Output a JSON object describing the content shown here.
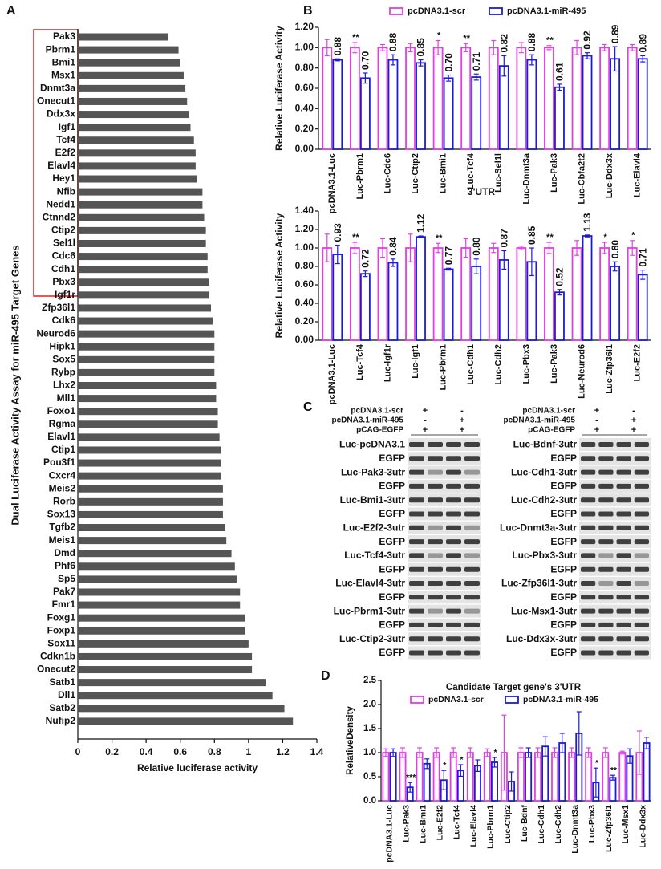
{
  "panels": [
    "A",
    "B",
    "C",
    "D"
  ],
  "chart_data": [
    {
      "type": "barh",
      "xlabel": "Relative luciferase activity",
      "ylabel": "Dual Luciferase Activity Assay for miR-495 Target Genes",
      "color": "#555555",
      "categories": [
        "Pak3",
        "Pbrm1",
        "Bmi1",
        "Msx1",
        "Dnmt3a",
        "Onecut1",
        "Ddx3x",
        "Igf1",
        "Tcf4",
        "E2f2",
        "Elavl4",
        "Hey1",
        "Nfib",
        "Nedd1",
        "Ctnnd2",
        "Ctip2",
        "Sel1l",
        "Cdc6",
        "Cdh1",
        "Pbx3",
        "Igf1r",
        "Zfp36l1",
        "Cdk6",
        "Neurod6",
        "Hipk1",
        "Sox5",
        "Rybp",
        "Lhx2",
        "Mll1",
        "Foxo1",
        "Rgma",
        "Elavl1",
        "Ctip1",
        "Pou3f1",
        "Cxcr4",
        "Meis2",
        "Rorb",
        "Sox13",
        "Tgfb2",
        "Meis1",
        "Dmd",
        "Phf6",
        "Sp5",
        "Pak7",
        "Fmr1",
        "Foxg1",
        "Foxp1",
        "Sox11",
        "Cdkn1b",
        "Onecut2",
        "Satb1",
        "Dll1",
        "Satb2",
        "Nufip2"
      ],
      "values": [
        0.53,
        0.59,
        0.6,
        0.62,
        0.63,
        0.64,
        0.65,
        0.66,
        0.68,
        0.69,
        0.69,
        0.7,
        0.73,
        0.73,
        0.74,
        0.75,
        0.75,
        0.76,
        0.76,
        0.77,
        0.77,
        0.78,
        0.79,
        0.8,
        0.8,
        0.8,
        0.8,
        0.81,
        0.81,
        0.82,
        0.82,
        0.83,
        0.84,
        0.84,
        0.84,
        0.85,
        0.85,
        0.85,
        0.86,
        0.87,
        0.9,
        0.92,
        0.93,
        0.95,
        0.95,
        0.98,
        0.98,
        1.0,
        1.02,
        1.02,
        1.1,
        1.14,
        1.21,
        1.26
      ],
      "xlim": [
        0,
        1.4
      ],
      "xticks": [
        0,
        0.2,
        0.4,
        0.6,
        0.8,
        1,
        1.2,
        1.4
      ]
    },
    {
      "type": "bar",
      "ylabel": "Relative Luciferase Activity",
      "categories": [
        "pcDNA3.1-Luc",
        "Luc-Pbrm1",
        "Luc-Cdc6",
        "Luc-Ctip2",
        "Luc-Bmi1",
        "Luc-Tcf4",
        "Luc-Sel1l",
        "Luc-Dnmt3a",
        "Luc-Pak3",
        "Luc-Cbfa2t2",
        "Luc-Ddx3x",
        "Luc-Elavl4"
      ],
      "series": [
        {
          "name": "pcDNA3.1-scr",
          "color": "#e040e0",
          "values": [
            1.0,
            1.0,
            1.0,
            1.0,
            1.0,
            1.0,
            1.0,
            1.0,
            1.0,
            1.0,
            1.0,
            1.0
          ],
          "errors": [
            0.08,
            0.05,
            0.03,
            0.04,
            0.07,
            0.04,
            0.07,
            0.05,
            0.02,
            0.07,
            0.03,
            0.03
          ]
        },
        {
          "name": "pcDNA3.1-miR-495",
          "color": "#1a1ad8",
          "values": [
            0.88,
            0.7,
            0.88,
            0.85,
            0.7,
            0.71,
            0.82,
            0.88,
            0.61,
            0.92,
            0.89,
            0.89
          ],
          "errors": [
            0.01,
            0.05,
            0.05,
            0.03,
            0.03,
            0.03,
            0.1,
            0.05,
            0.03,
            0.03,
            0.12,
            0.03
          ],
          "value_labels": [
            "0.88",
            "0.70",
            "0.88",
            "0.85",
            "0.70",
            "0.71",
            "0.82",
            "0.88",
            "0.61",
            "0.92",
            "0.89",
            "0.89"
          ],
          "significance": [
            null,
            "**",
            null,
            null,
            "*",
            "**",
            null,
            null,
            "**",
            null,
            null,
            null
          ]
        }
      ],
      "significance_color": "#e02020",
      "ylim": [
        0,
        1.2
      ],
      "yticks": [
        {
          "value": 0,
          "label": "0.00"
        },
        {
          "value": 0.2,
          "label": "0.20"
        },
        {
          "value": 0.4,
          "label": "0.40"
        },
        {
          "value": 0.6,
          "label": "0.60"
        },
        {
          "value": 0.8,
          "label": "0.80"
        },
        {
          "value": 1.0,
          "label": "1.00"
        },
        {
          "value": 1.2,
          "label": "1.20"
        }
      ]
    },
    {
      "type": "bar",
      "title": "3'UTR",
      "ylabel": "Relative Luciferase Activity",
      "categories": [
        "pcDNA3.1-Luc",
        "Luc-Tcf4",
        "Luc-Igf1r",
        "Luc-Igf1",
        "Luc-Pbrm1",
        "Luc-Cdh1",
        "Luc-Cdh2",
        "Luc-Pbx3",
        "Luc-Pak3",
        "Luc-Neurod6",
        "Luc-Zfp36l1",
        "Luc-E2f2"
      ],
      "series": [
        {
          "name": "pcDNA3.1-scr",
          "color": "#e040e0",
          "values": [
            1.0,
            1.0,
            1.0,
            1.0,
            1.0,
            1.0,
            1.0,
            1.0,
            1.0,
            1.0,
            1.0,
            1.0
          ],
          "errors": [
            0.15,
            0.06,
            0.1,
            0.15,
            0.05,
            0.1,
            0.05,
            0.02,
            0.06,
            0.08,
            0.06,
            0.08
          ]
        },
        {
          "name": "pcDNA3.1-miR-495",
          "color": "#1a1ad8",
          "values": [
            0.93,
            0.72,
            0.84,
            1.12,
            0.77,
            0.8,
            0.87,
            0.85,
            0.52,
            1.13,
            0.8,
            0.71
          ],
          "errors": [
            0.1,
            0.03,
            0.04,
            0.01,
            0.01,
            0.08,
            0.1,
            0.15,
            0.03,
            0.01,
            0.05,
            0.05
          ],
          "value_labels": [
            "0.93",
            "0.72",
            "0.84",
            "1.12",
            "0.77",
            "0.80",
            "0.87",
            "0.85",
            "0.52",
            "1.13",
            "0.80",
            "0.71"
          ],
          "significance": [
            null,
            "**",
            null,
            null,
            "**",
            null,
            null,
            null,
            "**",
            null,
            "*",
            "*"
          ]
        }
      ],
      "significance_color": "#e02020",
      "ylim": [
        0,
        1.4
      ],
      "yticks": [
        {
          "value": 0,
          "label": "0.00"
        },
        {
          "value": 0.2,
          "label": "0.20"
        },
        {
          "value": 0.4,
          "label": "0.40"
        },
        {
          "value": 0.6,
          "label": "0.60"
        },
        {
          "value": 0.8,
          "label": "0.80"
        },
        {
          "value": 1.0,
          "label": "1.00"
        },
        {
          "value": 1.2,
          "label": "1.20"
        },
        {
          "value": 1.4,
          "label": "1.40"
        }
      ]
    },
    {
      "type": "bar",
      "title": "Candidate Target gene's 3'UTR",
      "ylabel": "RelativeDensity",
      "categories": [
        "pcDNA3.1-Luc",
        "Luc-Pak3",
        "Luc-Bmi1",
        "Luc-E2f2",
        "Luc-Tcf4",
        "Luc-Elavl4",
        "Luc-Pbrm1",
        "Luc-Ctip2",
        "Luc-Bdnf",
        "Luc-Cdh1",
        "Luc-Cdh2",
        "Luc-Dnmt3a",
        "Luc-Pbx3",
        "Luc-Zfp36l1",
        "Luc-Msx1",
        "Luc-Ddx3x"
      ],
      "category_colors": [
        "#111111",
        "#e02020",
        "#111111",
        "#e02020",
        "#e02020",
        "#111111",
        "#e02020",
        "#111111",
        "#111111",
        "#111111",
        "#111111",
        "#111111",
        "#e02020",
        "#e02020",
        "#111111",
        "#111111"
      ],
      "series": [
        {
          "name": "pcDNA3.1-scr",
          "color": "#e040e0",
          "values": [
            1.0,
            1.0,
            1.0,
            1.0,
            1.0,
            1.0,
            1.0,
            1.0,
            1.0,
            1.0,
            1.0,
            1.0,
            1.0,
            1.0,
            1.0,
            1.0
          ],
          "errors": [
            0.08,
            0.1,
            0.1,
            0.1,
            0.1,
            0.1,
            0.08,
            0.78,
            0.1,
            0.1,
            0.1,
            0.1,
            0.1,
            0.1,
            0.03,
            0.45
          ]
        },
        {
          "name": "pcDNA3.1-miR-495",
          "color": "#1a1ad8",
          "values": [
            1.0,
            0.28,
            0.77,
            0.43,
            0.63,
            0.73,
            0.8,
            0.4,
            1.0,
            1.13,
            1.2,
            1.4,
            0.38,
            0.48,
            0.93,
            1.2
          ],
          "errors": [
            0.08,
            0.1,
            0.1,
            0.2,
            0.12,
            0.12,
            0.1,
            0.2,
            0.1,
            0.2,
            0.2,
            0.45,
            0.3,
            0.05,
            0.15,
            0.12
          ],
          "significance": [
            null,
            "***",
            null,
            "*",
            "*",
            null,
            "*",
            null,
            null,
            null,
            null,
            null,
            "*",
            "**",
            null,
            null
          ]
        }
      ],
      "significance_color": "#111111",
      "ylim": [
        0,
        2.5
      ],
      "yticks": [
        {
          "value": 0,
          "label": "0.0"
        },
        0.5,
        {
          "value": 1.0,
          "label": "1.0"
        },
        1.5,
        {
          "value": 2.0,
          "label": "2.0"
        },
        2.5
      ]
    }
  ],
  "blots": {
    "conditions": [
      {
        "name": "pcDNA3.1-scr",
        "signs": [
          "+",
          "-"
        ]
      },
      {
        "name": "pcDNA3.1-miR-495",
        "signs": [
          "-",
          "+"
        ]
      },
      {
        "name": "pCAG-EGFP",
        "signs": [
          "+",
          "+"
        ]
      }
    ],
    "left": [
      {
        "label": "Luc-pcDNA3.1"
      },
      {
        "label": "EGFP"
      },
      {
        "label": "Luc-Pak3-3utr",
        "color": "#e02020"
      },
      {
        "label": "EGFP"
      },
      {
        "label": "Luc-Bmi1-3utr"
      },
      {
        "label": "EGFP"
      },
      {
        "label": "Luc-E2f2-3utr",
        "color": "#e02020"
      },
      {
        "label": "EGFP"
      },
      {
        "label": "Luc-Tcf4-3utr",
        "color": "#e02020"
      },
      {
        "label": "EGFP"
      },
      {
        "label": "Luc-Elavl4-3utr"
      },
      {
        "label": "EGFP"
      },
      {
        "label": "Luc-Pbrm1-3utr",
        "color": "#e02020"
      },
      {
        "label": "EGFP"
      },
      {
        "label": "Luc-Ctip2-3utr"
      },
      {
        "label": "EGFP"
      }
    ],
    "right": [
      {
        "label": "Luc-Bdnf-3utr"
      },
      {
        "label": "EGFP"
      },
      {
        "label": "Luc-Cdh1-3utr"
      },
      {
        "label": "EGFP"
      },
      {
        "label": "Luc-Cdh2-3utr"
      },
      {
        "label": "EGFP"
      },
      {
        "label": "Luc-Dnmt3a-3utr"
      },
      {
        "label": "EGFP"
      },
      {
        "label": "Luc-Pbx3-3utr",
        "color": "#e02020"
      },
      {
        "label": "EGFP"
      },
      {
        "label": "Luc-Zfp36l1-3utr",
        "color": "#e02020"
      },
      {
        "label": "EGFP"
      },
      {
        "label": "Luc-Msx1-3utr"
      },
      {
        "label": "EGFP"
      },
      {
        "label": "Luc-Ddx3x-3utr"
      },
      {
        "label": "EGFP"
      }
    ]
  }
}
